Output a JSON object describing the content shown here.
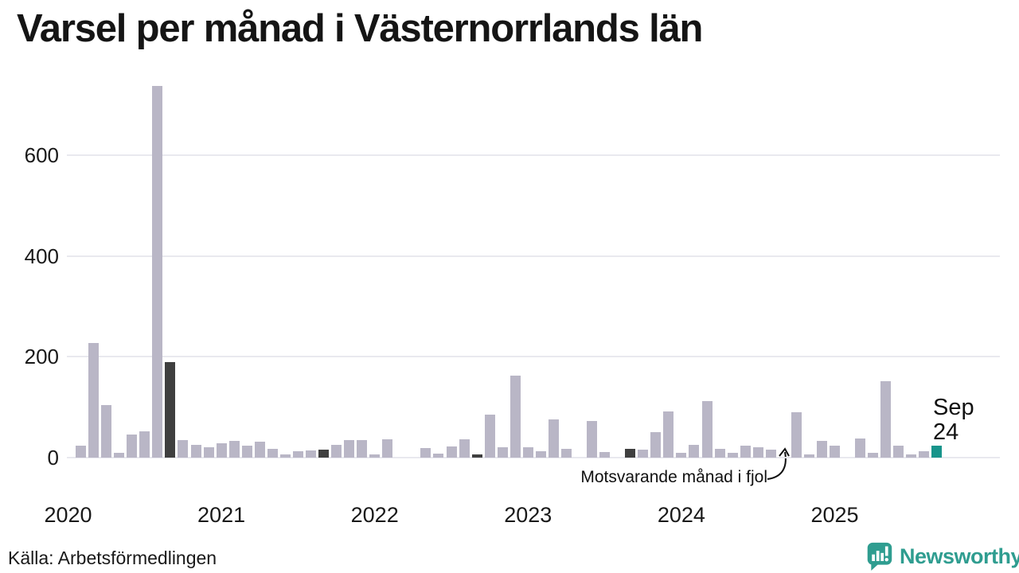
{
  "title": "Varsel per månad i Västernorrlands län",
  "source": "Källa: Arbetsförmedlingen",
  "branding": {
    "name": "Newsworthy"
  },
  "annotation": {
    "text": "Motsvarande månad i fjol"
  },
  "latest_label": {
    "month": "Sep",
    "value": "24"
  },
  "colors": {
    "default": "#b9b6c6",
    "fjol": "#3f3f3f",
    "latest": "#18948b",
    "grid": "#e9e9ef",
    "text": "#191919",
    "brand": "#2f9d90"
  },
  "chart_data": {
    "type": "bar",
    "title": "Varsel per månad i Västernorrlands län",
    "xlabel": "",
    "ylabel": "",
    "ylim": [
      0,
      760
    ],
    "yticks": [
      0,
      200,
      400,
      600
    ],
    "grid": "horizontal",
    "year_labels": [
      "2020",
      "2021",
      "2022",
      "2023",
      "2024",
      "2025"
    ],
    "months": [
      {
        "month": "2020-01",
        "value": 0,
        "role": "default"
      },
      {
        "month": "2020-02",
        "value": 23,
        "role": "default"
      },
      {
        "month": "2020-03",
        "value": 227,
        "role": "default"
      },
      {
        "month": "2020-04",
        "value": 104,
        "role": "default"
      },
      {
        "month": "2020-05",
        "value": 9,
        "role": "default"
      },
      {
        "month": "2020-06",
        "value": 46,
        "role": "default"
      },
      {
        "month": "2020-07",
        "value": 52,
        "role": "default"
      },
      {
        "month": "2020-08",
        "value": 737,
        "role": "default"
      },
      {
        "month": "2020-09",
        "value": 190,
        "role": "fjol"
      },
      {
        "month": "2020-10",
        "value": 35,
        "role": "default"
      },
      {
        "month": "2020-11",
        "value": 25,
        "role": "default"
      },
      {
        "month": "2020-12",
        "value": 20,
        "role": "default"
      },
      {
        "month": "2021-01",
        "value": 28,
        "role": "default"
      },
      {
        "month": "2021-02",
        "value": 33,
        "role": "default"
      },
      {
        "month": "2021-03",
        "value": 23,
        "role": "default"
      },
      {
        "month": "2021-04",
        "value": 32,
        "role": "default"
      },
      {
        "month": "2021-05",
        "value": 17,
        "role": "default"
      },
      {
        "month": "2021-06",
        "value": 6,
        "role": "default"
      },
      {
        "month": "2021-07",
        "value": 12,
        "role": "default"
      },
      {
        "month": "2021-08",
        "value": 14,
        "role": "default"
      },
      {
        "month": "2021-09",
        "value": 15,
        "role": "fjol"
      },
      {
        "month": "2021-10",
        "value": 26,
        "role": "default"
      },
      {
        "month": "2021-11",
        "value": 35,
        "role": "default"
      },
      {
        "month": "2021-12",
        "value": 35,
        "role": "default"
      },
      {
        "month": "2022-01",
        "value": 7,
        "role": "default"
      },
      {
        "month": "2022-02",
        "value": 37,
        "role": "default"
      },
      {
        "month": "2022-03",
        "value": 0,
        "role": "default"
      },
      {
        "month": "2022-04",
        "value": 0,
        "role": "default"
      },
      {
        "month": "2022-05",
        "value": 19,
        "role": "default"
      },
      {
        "month": "2022-06",
        "value": 8,
        "role": "default"
      },
      {
        "month": "2022-07",
        "value": 22,
        "role": "default"
      },
      {
        "month": "2022-08",
        "value": 36,
        "role": "default"
      },
      {
        "month": "2022-09",
        "value": 7,
        "role": "fjol"
      },
      {
        "month": "2022-10",
        "value": 85,
        "role": "default"
      },
      {
        "month": "2022-11",
        "value": 20,
        "role": "default"
      },
      {
        "month": "2022-12",
        "value": 163,
        "role": "default"
      },
      {
        "month": "2023-01",
        "value": 20,
        "role": "default"
      },
      {
        "month": "2023-02",
        "value": 12,
        "role": "default"
      },
      {
        "month": "2023-03",
        "value": 76,
        "role": "default"
      },
      {
        "month": "2023-04",
        "value": 17,
        "role": "default"
      },
      {
        "month": "2023-05",
        "value": 0,
        "role": "default"
      },
      {
        "month": "2023-06",
        "value": 72,
        "role": "default"
      },
      {
        "month": "2023-07",
        "value": 11,
        "role": "default"
      },
      {
        "month": "2023-08",
        "value": 0,
        "role": "default"
      },
      {
        "month": "2023-09",
        "value": 18,
        "role": "fjol"
      },
      {
        "month": "2023-10",
        "value": 15,
        "role": "default"
      },
      {
        "month": "2023-11",
        "value": 51,
        "role": "default"
      },
      {
        "month": "2023-12",
        "value": 92,
        "role": "default"
      },
      {
        "month": "2024-01",
        "value": 10,
        "role": "default"
      },
      {
        "month": "2024-02",
        "value": 25,
        "role": "default"
      },
      {
        "month": "2024-03",
        "value": 112,
        "role": "default"
      },
      {
        "month": "2024-04",
        "value": 18,
        "role": "default"
      },
      {
        "month": "2024-05",
        "value": 9,
        "role": "default"
      },
      {
        "month": "2024-06",
        "value": 24,
        "role": "default"
      },
      {
        "month": "2024-07",
        "value": 20,
        "role": "default"
      },
      {
        "month": "2024-08",
        "value": 16,
        "role": "default"
      },
      {
        "month": "2024-09",
        "value": 0,
        "role": "fjol"
      },
      {
        "month": "2024-10",
        "value": 90,
        "role": "default"
      },
      {
        "month": "2024-11",
        "value": 6,
        "role": "default"
      },
      {
        "month": "2024-12",
        "value": 33,
        "role": "default"
      },
      {
        "month": "2025-01",
        "value": 24,
        "role": "default"
      },
      {
        "month": "2025-02",
        "value": 0,
        "role": "default"
      },
      {
        "month": "2025-03",
        "value": 38,
        "role": "default"
      },
      {
        "month": "2025-04",
        "value": 9,
        "role": "default"
      },
      {
        "month": "2025-05",
        "value": 152,
        "role": "default"
      },
      {
        "month": "2025-06",
        "value": 23,
        "role": "default"
      },
      {
        "month": "2025-07",
        "value": 7,
        "role": "default"
      },
      {
        "month": "2025-08",
        "value": 12,
        "role": "default"
      },
      {
        "month": "2025-09",
        "value": 24,
        "role": "latest"
      }
    ]
  }
}
